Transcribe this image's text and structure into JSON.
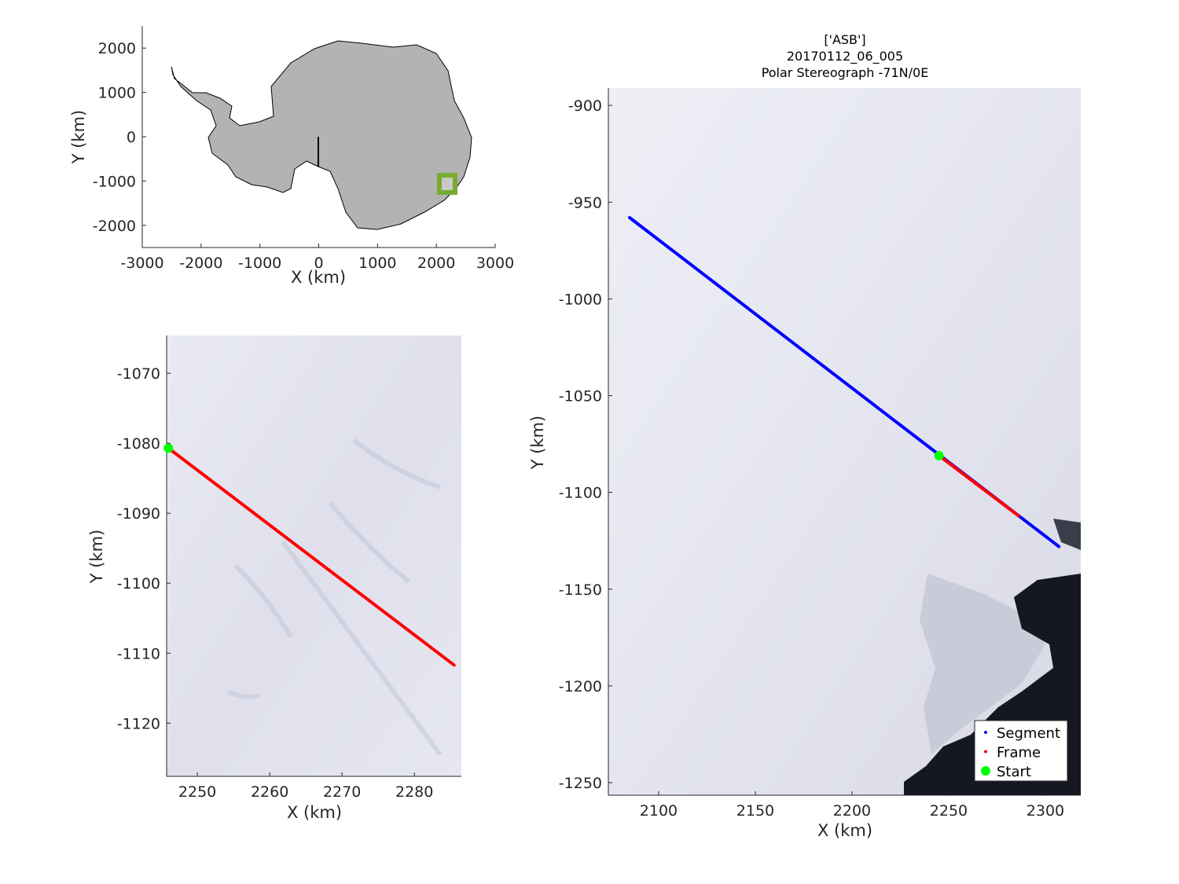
{
  "chart_data": [
    {
      "type": "map",
      "x_label": "X (km)",
      "y_label": "Y (km)",
      "xlim": [
        -3000,
        3000
      ],
      "ylim": [
        -2500,
        2500
      ],
      "xticks": [
        -3000,
        -2000,
        -1000,
        0,
        1000,
        2000,
        3000
      ],
      "yticks": [
        -2000,
        -1000,
        0,
        1000,
        2000
      ],
      "land_color": "#b3b3b3",
      "box_color": "#77ac30"
    },
    {
      "type": "line",
      "x_label": "X (km)",
      "y_label": "Y (km)",
      "xlim": [
        2245.75,
        2286.5
      ],
      "ylim": [
        -1127.6,
        -1064.6
      ],
      "xticks": [
        2250,
        2260,
        2270,
        2280
      ],
      "yticks": [
        -1070,
        -1080,
        -1090,
        -1100,
        -1110,
        -1120
      ],
      "series": [
        {
          "color": "#ff0000",
          "marker": ".",
          "x": [
            2246,
            2285.5
          ],
          "y": [
            -1080.7,
            -1111.7
          ]
        },
        {
          "color": "#00ff00",
          "marker": "o",
          "x": [
            2246
          ],
          "y": [
            -1080.7
          ]
        }
      ]
    },
    {
      "type": "line",
      "title": [
        "['ASB']",
        "20170112_06_005",
        "Polar Stereograph -71N/0E"
      ],
      "x_label": "X (km)",
      "y_label": "Y (km)",
      "xlim": [
        2074,
        2318.3
      ],
      "ylim": [
        -1256.5,
        -891
      ],
      "xticks": [
        2100,
        2150,
        2200,
        2250,
        2300
      ],
      "yticks": [
        -900,
        -950,
        -1000,
        -1050,
        -1100,
        -1150,
        -1200,
        -1250
      ],
      "legend": "lower right",
      "series": [
        {
          "name": "Segment",
          "color": "#0000ff",
          "marker": ".",
          "x": [
            2085,
            2307
          ],
          "y": [
            -958,
            -1128
          ]
        },
        {
          "name": "Frame",
          "color": "#ff0000",
          "marker": ".",
          "x": [
            2245,
            2286
          ],
          "y": [
            -1081,
            -1112
          ]
        },
        {
          "name": "Start",
          "color": "#00ff00",
          "marker": "o",
          "x": [
            2245
          ],
          "y": [
            -1081
          ]
        }
      ]
    }
  ]
}
